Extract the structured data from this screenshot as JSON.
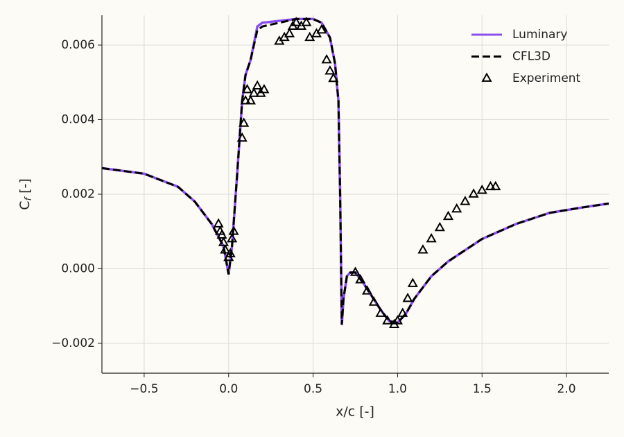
{
  "chart_data": {
    "type": "line",
    "xlabel": "x/c [-]",
    "ylabel": [
      "C",
      "f",
      " [-]"
    ],
    "xlim": [
      -0.75,
      2.25
    ],
    "ylim": [
      -0.0028,
      0.0068
    ],
    "xticks": [
      {
        "value": -0.5,
        "label": "−0.5"
      },
      {
        "value": 0,
        "label": "0.0"
      },
      0.5,
      {
        "value": 1,
        "label": "1.0"
      },
      1.5,
      {
        "value": 2,
        "label": "2.0"
      }
    ],
    "yticks": [
      {
        "value": -0.002,
        "label": "−0.002"
      },
      {
        "value": 0,
        "label": "0.000"
      },
      0.002,
      0.004,
      0.006
    ],
    "grid": true,
    "legend": "upper right",
    "x": [
      -0.75,
      -0.5,
      -0.3,
      -0.2,
      -0.1,
      -0.03,
      0.0,
      0.02,
      0.05,
      0.08,
      0.1,
      0.13,
      0.17,
      0.2,
      0.3,
      0.4,
      0.5,
      0.55,
      0.6,
      0.63,
      0.65,
      0.66,
      0.67,
      0.68,
      0.7,
      0.72,
      0.75,
      0.8,
      0.9,
      0.95,
      1.0,
      1.05,
      1.1,
      1.2,
      1.3,
      1.5,
      1.7,
      1.9,
      2.1,
      2.25
    ],
    "series": [
      {
        "name": "Luminary",
        "color": "#8b4ff0",
        "style": "solid",
        "values": [
          0.0027,
          0.00255,
          0.0022,
          0.0018,
          0.0012,
          0.0006,
          -0.00015,
          0.0006,
          0.0025,
          0.0045,
          0.0052,
          0.0056,
          0.0065,
          0.0066,
          0.00665,
          0.0067,
          0.0067,
          0.0066,
          0.0062,
          0.0055,
          0.0045,
          0.002,
          -0.0015,
          -0.0008,
          -0.0002,
          -0.0001,
          -0.0001,
          -0.0004,
          -0.0011,
          -0.0014,
          -0.00145,
          -0.0012,
          -0.0008,
          -0.0002,
          0.0002,
          0.0008,
          0.0012,
          0.0015,
          0.00165,
          0.00175
        ]
      },
      {
        "name": "CFL3D",
        "color": "#000000",
        "style": "dashed",
        "values": [
          0.0027,
          0.00255,
          0.0022,
          0.0018,
          0.0012,
          0.0006,
          -0.00015,
          0.0006,
          0.0025,
          0.0045,
          0.0052,
          0.0056,
          0.0064,
          0.0065,
          0.0066,
          0.0067,
          0.0067,
          0.0066,
          0.0062,
          0.0055,
          0.0045,
          0.002,
          -0.0015,
          -0.0008,
          -0.0002,
          -0.0001,
          -0.0001,
          -0.0004,
          -0.0011,
          -0.0014,
          -0.00145,
          -0.0012,
          -0.0008,
          -0.0002,
          0.0002,
          0.0008,
          0.0012,
          0.0015,
          0.00165,
          0.00175
        ]
      },
      {
        "name": "Experiment",
        "color": "#000000",
        "type": "scatter",
        "marker": "triangle",
        "x": [
          -0.06,
          -0.05,
          -0.04,
          -0.03,
          -0.02,
          0.0,
          0.01,
          0.02,
          0.03,
          0.08,
          0.09,
          0.1,
          0.11,
          0.13,
          0.15,
          0.17,
          0.19,
          0.21,
          0.3,
          0.33,
          0.36,
          0.38,
          0.4,
          0.43,
          0.46,
          0.48,
          0.52,
          0.55,
          0.58,
          0.6,
          0.62,
          0.75,
          0.78,
          0.82,
          0.86,
          0.9,
          0.94,
          0.98,
          1.0,
          1.03,
          1.06,
          1.09,
          1.15,
          1.2,
          1.25,
          1.3,
          1.35,
          1.4,
          1.45,
          1.5,
          1.55,
          1.58
        ],
        "values": [
          0.0012,
          0.001,
          0.0009,
          0.0007,
          0.0005,
          0.0003,
          0.0004,
          0.0008,
          0.001,
          0.0035,
          0.0039,
          0.0045,
          0.0048,
          0.0045,
          0.0047,
          0.0049,
          0.0047,
          0.0048,
          0.0061,
          0.0062,
          0.0063,
          0.0065,
          0.0066,
          0.0065,
          0.0066,
          0.0062,
          0.0063,
          0.0064,
          0.0056,
          0.0053,
          0.0051,
          -0.0001,
          -0.0003,
          -0.0006,
          -0.0009,
          -0.0012,
          -0.0014,
          -0.0015,
          -0.0014,
          -0.0012,
          -0.0008,
          -0.0004,
          0.0005,
          0.0008,
          0.0011,
          0.0014,
          0.0016,
          0.0018,
          0.002,
          0.0021,
          0.0022,
          0.0022
        ]
      }
    ]
  }
}
